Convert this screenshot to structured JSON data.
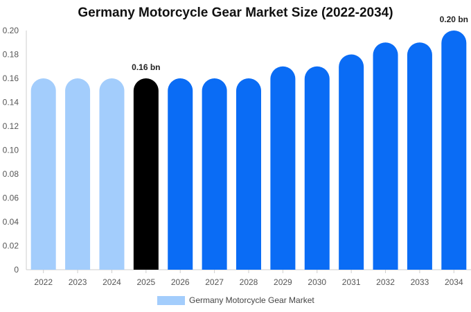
{
  "chart_data": {
    "type": "bar",
    "title": "Germany Motorcycle Gear Market Size (2022-2034)",
    "xlabel": "",
    "ylabel": "",
    "categories": [
      "2022",
      "2023",
      "2024",
      "2025",
      "2026",
      "2027",
      "2028",
      "2029",
      "2030",
      "2031",
      "2032",
      "2033",
      "2034"
    ],
    "series": [
      {
        "name": "Germany Motorcycle Gear Market",
        "values": [
          0.16,
          0.16,
          0.16,
          0.16,
          0.16,
          0.16,
          0.16,
          0.17,
          0.17,
          0.18,
          0.19,
          0.19,
          0.2
        ]
      }
    ],
    "ylim": [
      0,
      0.2
    ],
    "yticks": [
      "0",
      "0.02",
      "0.04",
      "0.06",
      "0.08",
      "0.10",
      "0.12",
      "0.14",
      "0.16",
      "0.18",
      "0.20"
    ],
    "data_labels": [
      {
        "category": "2025",
        "text": "0.16 bn"
      },
      {
        "category": "2034",
        "text": "0.20 bn"
      }
    ],
    "bar_colors": {
      "historical": "#a3cdfc",
      "current": "#000000",
      "forecast": "#0a6cf5"
    },
    "bar_color_by_category": [
      "historical",
      "historical",
      "historical",
      "current",
      "forecast",
      "forecast",
      "forecast",
      "forecast",
      "forecast",
      "forecast",
      "forecast",
      "forecast",
      "forecast"
    ],
    "grid": false,
    "legend_position": "bottom"
  }
}
